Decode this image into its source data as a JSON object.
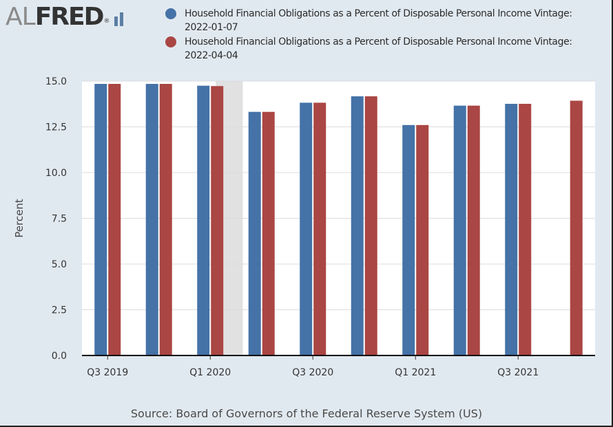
{
  "logo": {
    "al": "AL",
    "fred": "FRED",
    "registered": "®"
  },
  "colors": {
    "series1": "#4572a7",
    "series2": "#aa4643",
    "recession": "#e1e1e1",
    "background": "#e1e9f0"
  },
  "source": "Source: Board of Governors of the Federal Reserve System (US)",
  "chart_data": {
    "type": "bar",
    "ylabel": "Percent",
    "xlabel": "",
    "ylim": [
      0,
      15
    ],
    "yticks": [
      "0.0",
      "2.5",
      "5.0",
      "7.5",
      "10.0",
      "12.5",
      "15.0"
    ],
    "xtick_labels": [
      "Q3 2019",
      "Q1 2020",
      "Q3 2020",
      "Q1 2021",
      "Q3 2021"
    ],
    "categories": [
      "Q3 2019",
      "Q4 2019",
      "Q1 2020",
      "Q2 2020",
      "Q3 2020",
      "Q4 2020",
      "Q1 2021",
      "Q2 2021",
      "Q3 2021",
      "Q4 2021"
    ],
    "recession_shading": [
      "Q1 2020",
      "Q2 2020"
    ],
    "grid": true,
    "legend": "top",
    "series": [
      {
        "name": "Household Financial Obligations as a Percent of Disposable Personal Income Vintage: 2022-01-07",
        "values": [
          14.85,
          14.85,
          14.75,
          13.32,
          13.82,
          14.17,
          12.6,
          13.66,
          13.76,
          null
        ]
      },
      {
        "name": "Household Financial Obligations as a Percent of Disposable Personal Income Vintage: 2022-04-04",
        "values": [
          14.85,
          14.85,
          14.73,
          13.32,
          13.82,
          14.17,
          12.6,
          13.66,
          13.76,
          13.93
        ]
      }
    ]
  }
}
